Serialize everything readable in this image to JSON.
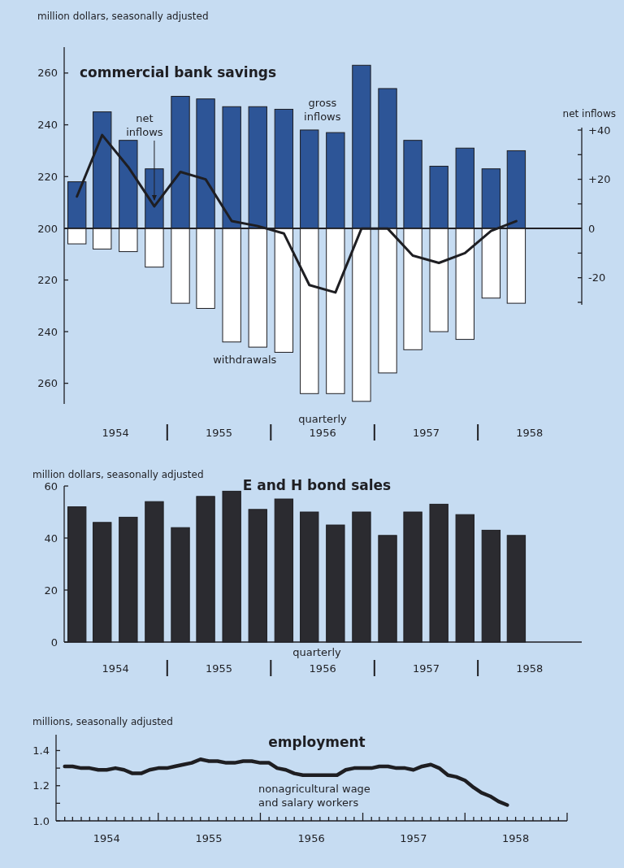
{
  "chart_data": [
    {
      "type": "bar",
      "title": "commercial bank savings",
      "ylabel": "million dollars, seasonally adjusted",
      "x": [
        "1954-02-15",
        "1954-05-15",
        "1954-08-15",
        "1954-11-15",
        "1955-02-15",
        "1955-05-15",
        "1955-08-15",
        "1955-11-15",
        "1956-02-15",
        "1956-05-15",
        "1956-08-15",
        "1956-11-15",
        "1957-02-15",
        "1957-05-15",
        "1957-08-15",
        "1957-11-15",
        "1958-02-15",
        "1958-05-15"
      ],
      "series": [
        {
          "name": "gross inflows",
          "color": "#2d5597",
          "values": [
            218,
            245,
            234,
            223,
            251,
            250,
            247,
            247,
            246,
            238,
            237,
            263,
            254,
            234,
            224,
            231,
            223,
            230
          ]
        }
      ],
      "xlim": [
        "1954-01",
        "1959-01"
      ],
      "ylim": [
        200,
        270
      ],
      "yticks": [
        200,
        220,
        240,
        260
      ],
      "tick_labels": "y"
    },
    {
      "type": "bar",
      "x": [
        "1954-02-15",
        "1954-05-15",
        "1954-08-15",
        "1954-11-15",
        "1955-02-15",
        "1955-05-15",
        "1955-08-15",
        "1955-11-15",
        "1956-02-15",
        "1956-05-15",
        "1956-08-15",
        "1956-11-15",
        "1957-02-15",
        "1957-05-15",
        "1957-08-15",
        "1957-11-15",
        "1958-02-15",
        "1958-05-15"
      ],
      "series": [
        {
          "name": "withdrawals",
          "color": "#ffffff",
          "values": [
            206,
            208,
            209,
            215,
            229,
            231,
            244,
            246,
            248,
            264,
            264,
            267,
            256,
            247,
            240,
            243,
            227,
            229
          ]
        }
      ],
      "xlim": [
        "1954-01",
        "1959-01"
      ],
      "xticks": [
        {
          "value": "1954-07",
          "label": "1954"
        },
        {
          "value": "1955-07",
          "label": "1955"
        },
        {
          "value": "1956-07",
          "label": "1956"
        },
        {
          "value": "1957-07",
          "label": "1957"
        },
        {
          "value": "1958-07",
          "label": "1958"
        }
      ],
      "ylim": [
        268,
        200
      ],
      "yticks": [
        220,
        240,
        260
      ],
      "annotations": [
        "quarterly"
      ]
    },
    {
      "type": "line",
      "ylabel": "net inflows",
      "x": [
        "1954-02-15",
        "1954-05-15",
        "1954-08-15",
        "1954-11-15",
        "1955-02-15",
        "1955-05-15",
        "1955-08-15",
        "1955-11-15",
        "1956-02-15",
        "1956-05-15",
        "1956-08-15",
        "1956-11-15",
        "1957-02-15",
        "1957-05-15",
        "1957-08-15",
        "1957-11-15",
        "1958-02-15",
        "1958-05-15"
      ],
      "series": [
        {
          "name": "net inflows",
          "color": "#1e1e22",
          "values": [
            13,
            38,
            25,
            9,
            23,
            20,
            3,
            1,
            -2,
            -23,
            -26,
            0,
            0,
            -11,
            -14,
            -10,
            -1,
            3
          ]
        }
      ],
      "xlim": [
        "1954-01",
        "1959-01"
      ],
      "ylim": [
        -31,
        41
      ],
      "yticks": [
        {
          "value": 40,
          "label": "+40"
        },
        {
          "value": 30,
          "label": null
        },
        {
          "value": 20,
          "label": "+20"
        },
        {
          "value": 10,
          "label": null
        },
        {
          "value": 0,
          "label": "0"
        },
        {
          "value": -10,
          "label": null
        },
        {
          "value": -20,
          "label": "-20"
        },
        {
          "value": -30,
          "label": null
        }
      ],
      "tick_labels": "y"
    },
    {
      "type": "bar",
      "title": "E and H bond sales",
      "ylabel": "million dollars, seasonally adjusted",
      "x": [
        "1954-02-15",
        "1954-05-15",
        "1954-08-15",
        "1954-11-15",
        "1955-02-15",
        "1955-05-15",
        "1955-08-15",
        "1955-11-15",
        "1956-02-15",
        "1956-05-15",
        "1956-08-15",
        "1956-11-15",
        "1957-02-15",
        "1957-05-15",
        "1957-08-15",
        "1957-11-15",
        "1958-02-15",
        "1958-05-15"
      ],
      "values": [
        52,
        46,
        48,
        54,
        44,
        56,
        58,
        51,
        55,
        50,
        45,
        50,
        41,
        50,
        53,
        49,
        43,
        41
      ],
      "color": "#2b2b30",
      "xlim": [
        "1954-01",
        "1959-01"
      ],
      "xticks": [
        {
          "value": "1954-07",
          "label": "1954"
        },
        {
          "value": "1955-07",
          "label": "1955"
        },
        {
          "value": "1956-07",
          "label": "1956"
        },
        {
          "value": "1957-07",
          "label": "1957"
        },
        {
          "value": "1958-07",
          "label": "1958"
        }
      ],
      "ylim": [
        0,
        60
      ],
      "yticks": [
        0,
        20,
        40,
        60
      ],
      "annotations": [
        "quarterly"
      ]
    },
    {
      "type": "line",
      "title": "employment",
      "ylabel": "millions, seasonally adjusted",
      "x": [
        "1954-02",
        "1954-03",
        "1954-04",
        "1954-05",
        "1954-06",
        "1954-07",
        "1954-08",
        "1954-09",
        "1954-10",
        "1954-11",
        "1954-12",
        "1955-01",
        "1955-02",
        "1955-03",
        "1955-04",
        "1955-05",
        "1955-06",
        "1955-07",
        "1955-08",
        "1955-09",
        "1955-10",
        "1955-11",
        "1955-12",
        "1956-01",
        "1956-02",
        "1956-03",
        "1956-04",
        "1956-05",
        "1956-06",
        "1956-07",
        "1956-08",
        "1956-09",
        "1956-10",
        "1956-11",
        "1956-12",
        "1957-01",
        "1957-02",
        "1957-03",
        "1957-04",
        "1957-05",
        "1957-06",
        "1957-07",
        "1957-08",
        "1957-09",
        "1957-10",
        "1957-11",
        "1957-12",
        "1958-01",
        "1958-02",
        "1958-03",
        "1958-04",
        "1958-05",
        "1958-06"
      ],
      "series": [
        {
          "name": "nonagricultural wage and salary workers",
          "color": "#1e1e22",
          "values": [
            1.31,
            1.31,
            1.3,
            1.3,
            1.29,
            1.29,
            1.3,
            1.29,
            1.27,
            1.27,
            1.29,
            1.3,
            1.3,
            1.31,
            1.32,
            1.33,
            1.35,
            1.34,
            1.34,
            1.33,
            1.33,
            1.34,
            1.34,
            1.33,
            1.33,
            1.3,
            1.29,
            1.27,
            1.26,
            1.26,
            1.26,
            1.26,
            1.26,
            1.29,
            1.3,
            1.3,
            1.3,
            1.31,
            1.31,
            1.3,
            1.3,
            1.29,
            1.31,
            1.32,
            1.3,
            1.26,
            1.25,
            1.23,
            1.19,
            1.16,
            1.14,
            1.11,
            1.09
          ]
        }
      ],
      "xlim": [
        "1954-01",
        "1959-01"
      ],
      "xticks": [
        {
          "value": "1954-02",
          "label": null
        },
        {
          "value": "1954-03",
          "label": null
        },
        {
          "value": "1954-04",
          "label": null
        },
        {
          "value": "1954-05",
          "label": null
        },
        {
          "value": "1954-06",
          "label": null
        },
        {
          "value": "1954-07",
          "label": "1954"
        },
        {
          "value": "1954-08",
          "label": null
        },
        {
          "value": "1954-09",
          "label": null
        },
        {
          "value": "1954-10",
          "label": null
        },
        {
          "value": "1954-11",
          "label": null
        },
        {
          "value": "1954-12",
          "label": null
        },
        {
          "value": "1955-01",
          "label": null
        },
        {
          "value": "1955-02",
          "label": null
        },
        {
          "value": "1955-03",
          "label": null
        },
        {
          "value": "1955-04",
          "label": null
        },
        {
          "value": "1955-05",
          "label": null
        },
        {
          "value": "1955-06",
          "label": null
        },
        {
          "value": "1955-07",
          "label": "1955"
        },
        {
          "value": "1955-08",
          "label": null
        },
        {
          "value": "1955-09",
          "label": null
        },
        {
          "value": "1955-10",
          "label": null
        },
        {
          "value": "1955-11",
          "label": null
        },
        {
          "value": "1955-12",
          "label": null
        },
        {
          "value": "1956-01",
          "label": null
        },
        {
          "value": "1956-02",
          "label": null
        },
        {
          "value": "1956-03",
          "label": null
        },
        {
          "value": "1956-04",
          "label": null
        },
        {
          "value": "1956-05",
          "label": null
        },
        {
          "value": "1956-06",
          "label": null
        },
        {
          "value": "1956-07",
          "label": "1956"
        },
        {
          "value": "1956-08",
          "label": null
        },
        {
          "value": "1956-09",
          "label": null
        },
        {
          "value": "1956-10",
          "label": null
        },
        {
          "value": "1956-11",
          "label": null
        },
        {
          "value": "1956-12",
          "label": null
        },
        {
          "value": "1957-01",
          "label": null
        },
        {
          "value": "1957-02",
          "label": null
        },
        {
          "value": "1957-03",
          "label": null
        },
        {
          "value": "1957-04",
          "label": null
        },
        {
          "value": "1957-05",
          "label": null
        },
        {
          "value": "1957-06",
          "label": null
        },
        {
          "value": "1957-07",
          "label": "1957"
        },
        {
          "value": "1957-08",
          "label": null
        },
        {
          "value": "1957-09",
          "label": null
        },
        {
          "value": "1957-10",
          "label": null
        },
        {
          "value": "1957-11",
          "label": null
        },
        {
          "value": "1957-12",
          "label": null
        },
        {
          "value": "1958-01",
          "label": null
        },
        {
          "value": "1958-02",
          "label": null
        },
        {
          "value": "1958-03",
          "label": null
        },
        {
          "value": "1958-04",
          "label": null
        },
        {
          "value": "1958-05",
          "label": null
        },
        {
          "value": "1958-06",
          "label": null
        },
        {
          "value": "1958-07",
          "label": "1958"
        },
        {
          "value": "1958-08",
          "label": null
        },
        {
          "value": "1958-09",
          "label": null
        },
        {
          "value": "1958-10",
          "label": null
        },
        {
          "value": "1958-11",
          "label": null
        },
        {
          "value": "1958-12",
          "label": null
        },
        {
          "value": "1959-01",
          "label": null
        }
      ],
      "ylim": [
        1.0,
        1.49
      ],
      "yticks": [
        {
          "value": 1.0,
          "label": "1.0"
        },
        {
          "value": 1.1,
          "label": null
        },
        {
          "value": 1.2,
          "label": "1.2"
        },
        {
          "value": 1.3,
          "label": null
        },
        {
          "value": 1.4,
          "label": "1.4"
        }
      ]
    }
  ]
}
